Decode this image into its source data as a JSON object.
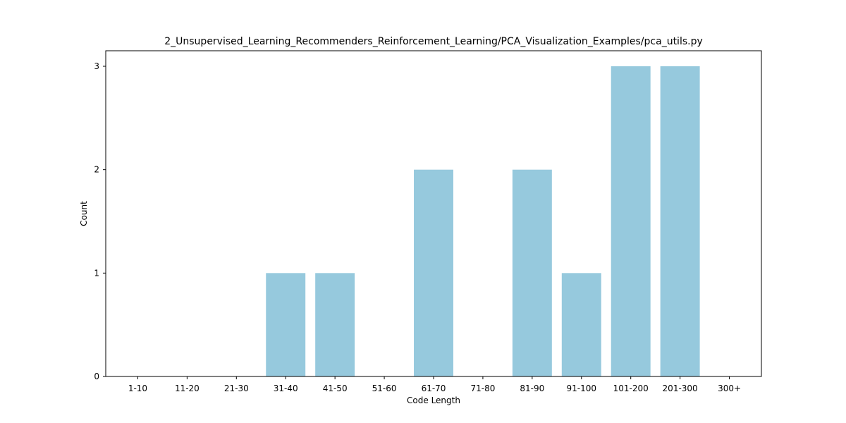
{
  "chart_data": {
    "type": "bar",
    "title": "2_Unsupervised_Learning_Recommenders_Reinforcement_Learning/PCA_Visualization_Examples/pca_utils.py",
    "xlabel": "Code Length",
    "ylabel": "Count",
    "categories": [
      "1-10",
      "11-20",
      "21-30",
      "31-40",
      "41-50",
      "51-60",
      "61-70",
      "71-80",
      "81-90",
      "91-100",
      "101-200",
      "201-300",
      "300+"
    ],
    "values": [
      0,
      0,
      0,
      1,
      1,
      0,
      2,
      0,
      2,
      1,
      3,
      3,
      0
    ],
    "ylim": [
      0,
      3.15
    ],
    "yticks": [
      0,
      1,
      2,
      3
    ],
    "bar_color": "#96c9dd",
    "grid": false,
    "legend": false
  }
}
